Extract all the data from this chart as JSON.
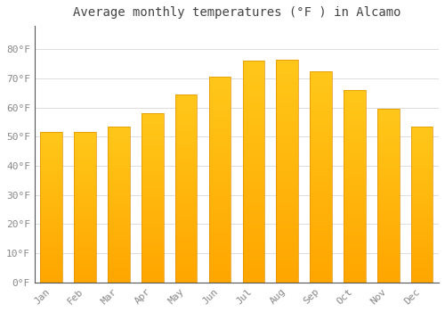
{
  "title": "Average monthly temperatures (°F ) in Alcamo",
  "months": [
    "Jan",
    "Feb",
    "Mar",
    "Apr",
    "May",
    "Jun",
    "Jul",
    "Aug",
    "Sep",
    "Oct",
    "Nov",
    "Dec"
  ],
  "values": [
    51.5,
    51.5,
    53.5,
    58.0,
    64.5,
    70.5,
    76.0,
    76.5,
    72.5,
    66.0,
    59.5,
    53.5
  ],
  "bar_color_top": "#FFC200",
  "bar_color_bottom": "#FFA500",
  "bar_edge_color": "#E09000",
  "background_color": "#ffffff",
  "plot_bg_color": "#ffffff",
  "grid_color": "#dddddd",
  "ylim": [
    0,
    88
  ],
  "yticks": [
    0,
    10,
    20,
    30,
    40,
    50,
    60,
    70,
    80
  ],
  "title_fontsize": 10,
  "tick_fontsize": 8,
  "title_color": "#444444",
  "tick_color": "#888888",
  "bar_width": 0.65
}
